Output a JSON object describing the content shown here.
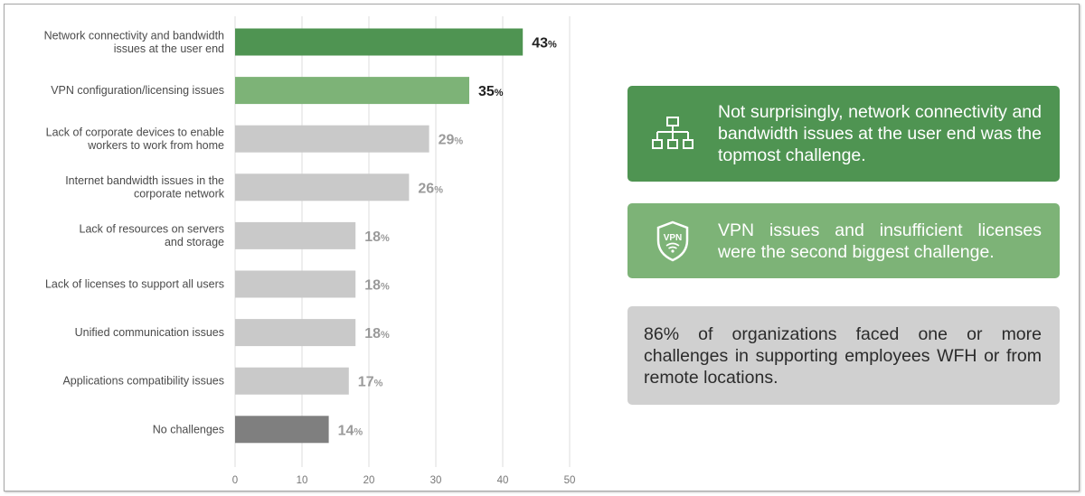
{
  "chart_data": {
    "type": "bar",
    "orientation": "horizontal",
    "categories": [
      [
        "Network connectivity and bandwidth",
        "issues at the user end"
      ],
      [
        "VPN configuration/licensing issues"
      ],
      [
        "Lack of corporate devices to enable",
        "workers to work from home"
      ],
      [
        "Internet bandwidth issues in the",
        "corporate network"
      ],
      [
        "Lack of resources on servers",
        "and storage"
      ],
      [
        "Lack of licenses to support all users"
      ],
      [
        "Unified communication issues"
      ],
      [
        "Applications compatibility issues"
      ],
      [
        "No challenges"
      ]
    ],
    "values": [
      43,
      35,
      29,
      26,
      18,
      18,
      18,
      17,
      14
    ],
    "value_suffix": "%",
    "bar_colors": [
      "#4f9452",
      "#7db377",
      "#c9c9c9",
      "#c9c9c9",
      "#c9c9c9",
      "#c9c9c9",
      "#c9c9c9",
      "#c9c9c9",
      "#7f7f7f"
    ],
    "label_colors": [
      "#222222",
      "#222222",
      "#9a9a9a",
      "#9a9a9a",
      "#9a9a9a",
      "#9a9a9a",
      "#9a9a9a",
      "#9a9a9a",
      "#9a9a9a"
    ],
    "xlim": [
      0,
      50
    ],
    "xticks": [
      0,
      10,
      20,
      30,
      40,
      50
    ],
    "grid": "vertical",
    "title": "",
    "xlabel": "",
    "ylabel": ""
  },
  "callouts": [
    {
      "text": "Not surprisingly, network connectivity and bandwidth issues at the user end was the topmost challenge.",
      "icon": "network-hierarchy-icon",
      "bg": "#4f9452"
    },
    {
      "text": "VPN issues and insufficient licenses were the second biggest challenge.",
      "icon": "vpn-shield-icon",
      "icon_text": "VPN",
      "bg": "#7db377"
    },
    {
      "text": "86% of organizations faced one or more challenges in supporting employees WFH or from remote locations.",
      "bg": "#d0d0d0"
    }
  ]
}
